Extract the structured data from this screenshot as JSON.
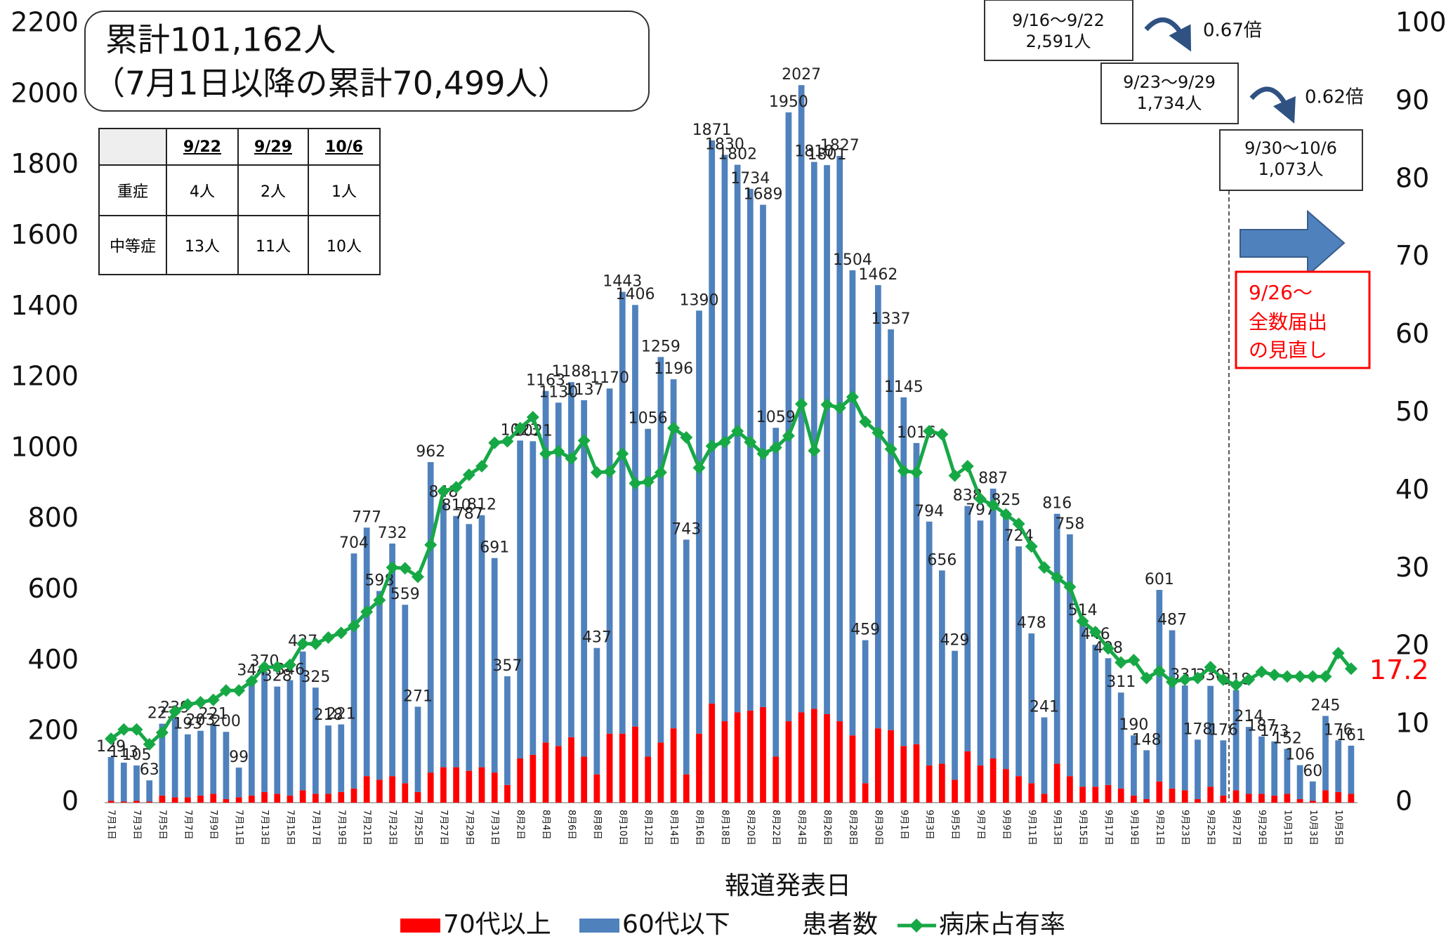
{
  "summary": {
    "line1": "累計101,162人",
    "line2": "（7月1日以降の累計70,499人）"
  },
  "table": {
    "header": [
      "9/22",
      "9/29",
      "10/6"
    ],
    "rows": [
      [
        "重症",
        "4人",
        "2人",
        "1人"
      ],
      [
        "中等症",
        "13人",
        "11人",
        "10人"
      ]
    ]
  },
  "annotations": {
    "week1": {
      "range": "9/16〜9/22",
      "count": "2,591人"
    },
    "ratio1": "0.67倍",
    "week2": {
      "range": "9/23〜9/29",
      "count": "1,734人"
    },
    "ratio2": "0.62倍",
    "week3": {
      "range": "9/30〜10/6",
      "count": "1,073人"
    },
    "note": [
      "9/26〜",
      "全数届出",
      "の見直し"
    ]
  },
  "chart_data": {
    "type": "bar",
    "stacked": true,
    "x_label": "報道発表日",
    "bar_legend_label": "患者数",
    "categories": [
      "7月1日",
      null,
      "7月3日",
      null,
      "7月5日",
      null,
      "7月7日",
      null,
      "7月9日",
      null,
      "7月11日",
      null,
      "7月13日",
      null,
      "7月15日",
      null,
      "7月17日",
      null,
      "7月19日",
      null,
      "7月21日",
      null,
      "7月23日",
      null,
      "7月25日",
      null,
      "7月27日",
      null,
      "7月29日",
      null,
      "7月31日",
      null,
      "8月2日",
      null,
      "8月4日",
      null,
      "8月6日",
      null,
      "8月8日",
      null,
      "8月10日",
      null,
      "8月12日",
      null,
      "8月14日",
      null,
      "8月16日",
      null,
      "8月18日",
      null,
      "8月20日",
      null,
      "8月22日",
      null,
      "8月24日",
      null,
      "8月26日",
      null,
      "8月28日",
      null,
      "8月30日",
      null,
      "9月1日",
      null,
      "9月3日",
      null,
      "9月5日",
      null,
      "9月7日",
      null,
      "9月9日",
      null,
      "9月11日",
      null,
      "9月13日",
      null,
      "9月15日",
      null,
      "9月17日",
      null,
      "9月19日",
      null,
      "9月21日",
      null,
      "9月23日",
      null,
      "9月25日",
      null,
      "9月27日",
      null,
      "9月29日",
      null,
      "10月1日",
      null,
      "10月3日",
      null,
      "10月5日",
      null
    ],
    "series": [
      {
        "name": "70代以上",
        "color": "#ff0000",
        "values": [
          5,
          3,
          5,
          3,
          20,
          15,
          15,
          20,
          25,
          10,
          15,
          20,
          30,
          25,
          20,
          35,
          25,
          25,
          30,
          40,
          75,
          65,
          75,
          55,
          30,
          85,
          100,
          100,
          90,
          100,
          85,
          50,
          125,
          135,
          170,
          160,
          185,
          130,
          80,
          195,
          195,
          215,
          130,
          170,
          210,
          80,
          195,
          280,
          230,
          255,
          260,
          270,
          130,
          230,
          255,
          265,
          250,
          230,
          190,
          55,
          210,
          205,
          160,
          165,
          105,
          110,
          65,
          145,
          105,
          125,
          95,
          75,
          55,
          25,
          110,
          75,
          45,
          45,
          50,
          40,
          20,
          10,
          60,
          40,
          35,
          10,
          45,
          20,
          35,
          25,
          25,
          20,
          25,
          10,
          5,
          35,
          30,
          25
        ]
      },
      {
        "name": "60代以下",
        "color": "#4f81bd",
        "values": [
          124,
          110,
          100,
          60,
          203,
          224,
          178,
          183,
          196,
          190,
          84,
          324,
          340,
          303,
          326,
          392,
          300,
          193,
          191,
          664,
          702,
          533,
          657,
          504,
          241,
          877,
          748,
          710,
          697,
          712,
          606,
          307,
          898,
          886,
          993,
          970,
          1003,
          1007,
          357,
          975,
          1248,
          1191,
          926,
          1089,
          986,
          663,
          1195,
          1591,
          1600,
          1547,
          1474,
          1419,
          929,
          1720,
          1772,
          1545,
          1551,
          1597,
          1314,
          404,
          1252,
          1132,
          985,
          851,
          689,
          546,
          364,
          693,
          692,
          762,
          730,
          649,
          423,
          216,
          706,
          683,
          469,
          401,
          358,
          271,
          170,
          138,
          541,
          447,
          296,
          168,
          285,
          156,
          283,
          189,
          162,
          153,
          127,
          96,
          55,
          210,
          146,
          136
        ]
      },
      {
        "name": "病床占有率",
        "color": "#17a846",
        "type": "line",
        "axis": "y2",
        "values": [
          8.2,
          9.4,
          9.4,
          7.5,
          9.0,
          11.7,
          12.6,
          12.9,
          13.2,
          14.4,
          14.4,
          15.6,
          17.4,
          17.4,
          17.7,
          20.4,
          20.4,
          21.2,
          21.8,
          22.7,
          24.5,
          26.0,
          30.2,
          30.1,
          29.0,
          33.1,
          40.0,
          40.5,
          42.1,
          43.2,
          46.2,
          46.4,
          48.1,
          49.5,
          44.8,
          45.1,
          44.2,
          46.5,
          42.4,
          42.5,
          44.8,
          41.0,
          41.2,
          42.4,
          48.1,
          46.9,
          43.0,
          45.8,
          46.3,
          47.7,
          46.3,
          44.8,
          45.6,
          47.1,
          51.2,
          45.2,
          51.1,
          50.7,
          52.1,
          48.9,
          47.5,
          45.4,
          42.6,
          42.4,
          47.7,
          47.3,
          42.0,
          43.2,
          39.0,
          38.2,
          37.0,
          35.8,
          32.9,
          30.2,
          28.9,
          27.7,
          23.3,
          21.9,
          19.8,
          18.0,
          18.3,
          16.0,
          16.9,
          15.5,
          15.8,
          16.0,
          17.4,
          15.8,
          15.1,
          15.8,
          16.8,
          16.4,
          16.2,
          16.2,
          16.2,
          16.2,
          19.2,
          17.2
        ]
      }
    ],
    "totals": [
      129,
      113,
      105,
      63,
      223,
      239,
      193,
      203,
      221,
      200,
      99,
      344,
      370,
      328,
      346,
      427,
      325,
      218,
      221,
      704,
      777,
      598,
      732,
      559,
      271,
      962,
      848,
      810,
      787,
      812,
      691,
      357,
      1023,
      1021,
      1163,
      1130,
      1188,
      1137,
      437,
      1170,
      1443,
      1406,
      1056,
      1259,
      1196,
      743,
      1390,
      1871,
      1830,
      1802,
      1734,
      1689,
      1059,
      1950,
      2027,
      1810,
      1801,
      1827,
      1504,
      459,
      1462,
      1337,
      1145,
      1016,
      794,
      656,
      429,
      838,
      797,
      887,
      825,
      724,
      478,
      241,
      816,
      758,
      514,
      446,
      408,
      311,
      190,
      148,
      601,
      487,
      331,
      178,
      330,
      176,
      318,
      214,
      187,
      173,
      152,
      106,
      60,
      245,
      176,
      161
    ],
    "ylim": [
      0,
      2200
    ],
    "yticks": [
      0,
      200,
      400,
      600,
      800,
      1000,
      1200,
      1400,
      1600,
      1800,
      2000,
      2200
    ],
    "y2lim": [
      0,
      100
    ],
    "y2ticks": [
      0,
      10,
      20,
      30,
      40,
      50,
      60,
      70,
      80,
      90,
      100
    ],
    "grid": false
  }
}
